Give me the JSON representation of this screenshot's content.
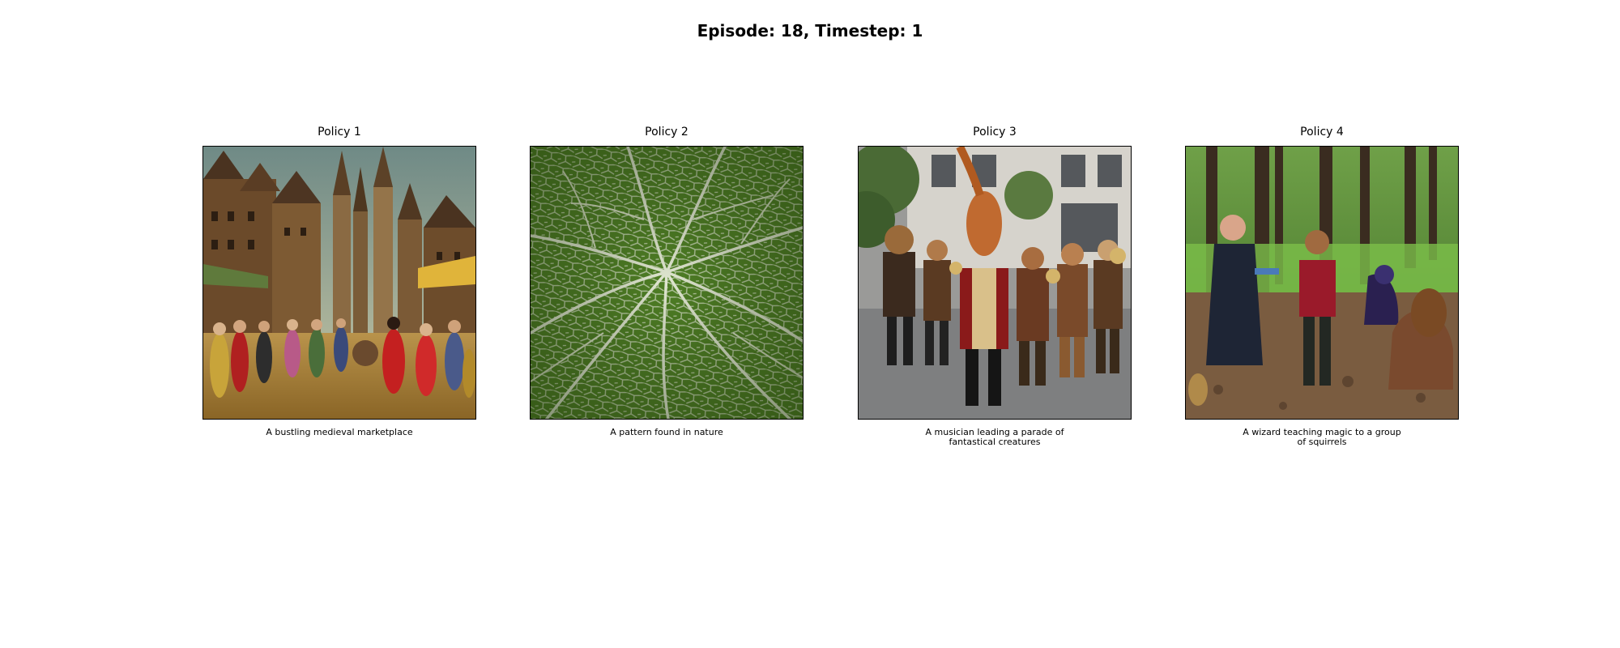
{
  "figure": {
    "title": "Episode: 18, Timestep: 1"
  },
  "panels": [
    {
      "title": "Policy 1",
      "caption": "A bustling medieval marketplace",
      "image_subject": "medieval-marketplace-painting"
    },
    {
      "title": "Policy 2",
      "caption": "A pattern found in nature",
      "image_subject": "leaf-vein-pattern"
    },
    {
      "title": "Policy 3",
      "caption": "A musician leading a parade of fantastical creatures",
      "image_subject": "costumed-parade-street"
    },
    {
      "title": "Policy 4",
      "caption": "A wizard teaching magic to a group of squirrels",
      "image_subject": "people-in-forest-clearing"
    }
  ]
}
